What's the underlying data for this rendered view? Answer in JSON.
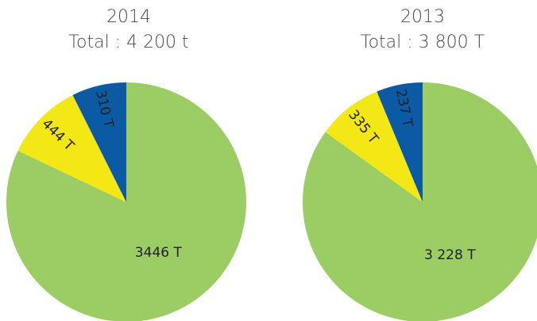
{
  "chart_data": [
    {
      "type": "pie",
      "title": "2014",
      "subtitle": "Total : 4 200 t",
      "categories": [
        null,
        null,
        null
      ],
      "values": [
        3446,
        444,
        310
      ],
      "value_labels": [
        "3446 T",
        "444 T",
        "310 T"
      ],
      "colors": [
        "#9ccc64",
        "#f3e716",
        "#0b5aa3"
      ]
    },
    {
      "type": "pie",
      "title": "2013",
      "subtitle": "Total : 3 800 T",
      "categories": [
        null,
        null,
        null
      ],
      "values": [
        3228,
        335,
        237
      ],
      "value_labels": [
        "3 228 T",
        "335 T",
        "237 T"
      ],
      "colors": [
        "#9ccc64",
        "#f3e716",
        "#0b5aa3"
      ]
    }
  ]
}
